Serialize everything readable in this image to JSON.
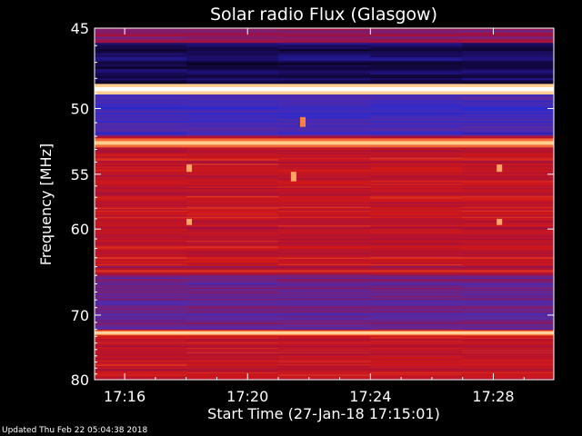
{
  "chart_data": {
    "type": "heatmap",
    "title": "Solar radio Flux (Glasgow)",
    "xlabel": "Start Time (27-Jan-18 17:15:01)",
    "ylabel": "Frequency [MHz]",
    "x_tick_labels": [
      "17:16",
      "17:20",
      "17:24",
      "17:28"
    ],
    "x_ticks_minutes": [
      16,
      20,
      24,
      28
    ],
    "xlim_minutes": [
      15.02,
      29.97
    ],
    "y_tick_labels": [
      "45",
      "50",
      "55",
      "60",
      "70",
      "80"
    ],
    "y_ticks": [
      45,
      50,
      55,
      60,
      70,
      80
    ],
    "ylim": [
      45,
      80
    ],
    "y_scale": "reciprocal",
    "colormap": [
      "#000000",
      "#1a0a5a",
      "#2a2ad0",
      "#5a2aa0",
      "#a01040",
      "#d01818",
      "#ff8040",
      "#ffe0a0",
      "#ffffff"
    ],
    "bright_bands_mhz": [
      {
        "freq": 48.7,
        "level": 1.0
      },
      {
        "freq": 52.5,
        "level": 0.85
      },
      {
        "freq": 64.5,
        "level": 0.65
      },
      {
        "freq": 72.5,
        "level": 0.9
      }
    ],
    "regions": [
      {
        "from": 45.0,
        "to": 45.8,
        "level": 0.45
      },
      {
        "from": 45.8,
        "to": 48.3,
        "level": 0.12
      },
      {
        "from": 48.3,
        "to": 49.2,
        "level": 0.3
      },
      {
        "from": 49.2,
        "to": 52.0,
        "level": 0.3
      },
      {
        "from": 52.0,
        "to": 53.0,
        "level": 0.55
      },
      {
        "from": 53.0,
        "to": 64.0,
        "level": 0.58
      },
      {
        "from": 64.0,
        "to": 65.0,
        "level": 0.5
      },
      {
        "from": 65.0,
        "to": 72.0,
        "level": 0.4
      },
      {
        "from": 72.0,
        "to": 73.0,
        "level": 0.6
      },
      {
        "from": 73.0,
        "to": 80.0,
        "level": 0.58
      }
    ],
    "events": [
      {
        "minute": 18.1,
        "freq_from": 54.2,
        "freq_to": 54.8,
        "level": 0.8
      },
      {
        "minute": 18.1,
        "freq_from": 59.0,
        "freq_to": 59.6,
        "level": 0.8
      },
      {
        "minute": 28.2,
        "freq_from": 54.2,
        "freq_to": 54.8,
        "level": 0.8
      },
      {
        "minute": 28.2,
        "freq_from": 59.0,
        "freq_to": 59.6,
        "level": 0.8
      },
      {
        "minute": 21.8,
        "freq_from": 50.6,
        "freq_to": 51.3,
        "level": 0.75
      },
      {
        "minute": 21.5,
        "freq_from": 54.8,
        "freq_to": 55.6,
        "level": 0.8
      }
    ]
  },
  "footer": {
    "updated": "Updated Thu Feb 22 05:04:38 2018"
  }
}
